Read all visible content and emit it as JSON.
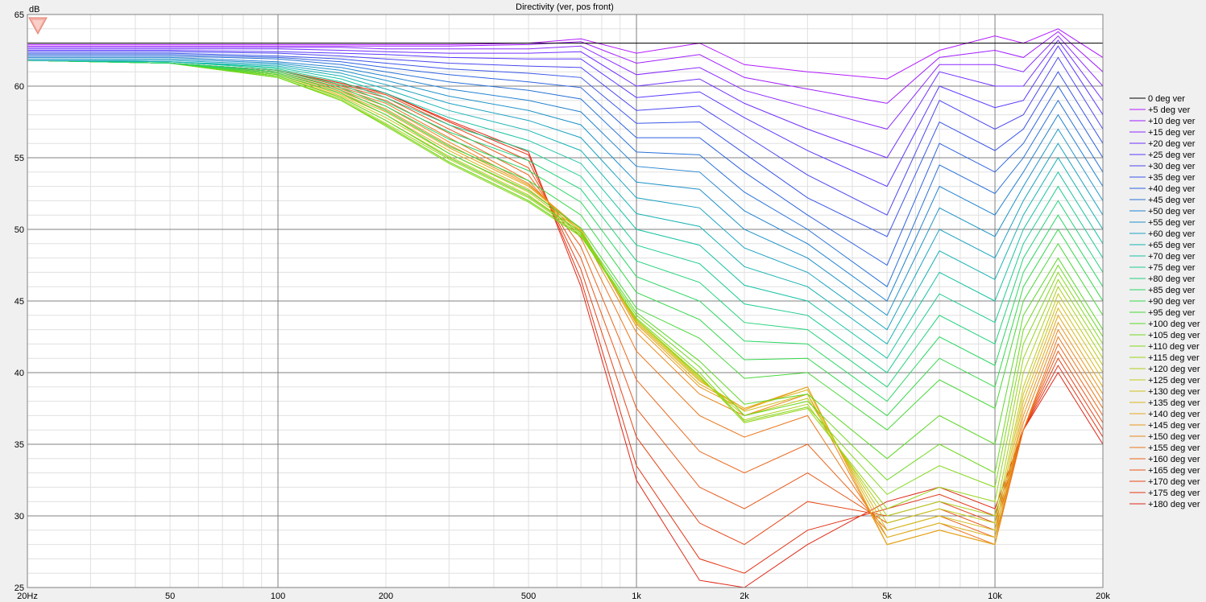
{
  "chart_data": {
    "type": "line",
    "title": "Directivity (ver, pos front)",
    "ylabel": "dB",
    "xscale": "log",
    "xlim": [
      20,
      20000
    ],
    "ylim": [
      25,
      65
    ],
    "x_ticks": [
      {
        "value": 20,
        "label": "20Hz"
      },
      {
        "value": 50,
        "label": "50"
      },
      {
        "value": 100,
        "label": "100"
      },
      {
        "value": 200,
        "label": "200"
      },
      {
        "value": 500,
        "label": "500"
      },
      {
        "value": 1000,
        "label": "1k"
      },
      {
        "value": 2000,
        "label": "2k"
      },
      {
        "value": 5000,
        "label": "5k"
      },
      {
        "value": 10000,
        "label": "10k"
      },
      {
        "value": 20000,
        "label": "20k"
      }
    ],
    "y_ticks": [
      {
        "value": 25,
        "label": "25"
      },
      {
        "value": 30,
        "label": "30"
      },
      {
        "value": 35,
        "label": "35"
      },
      {
        "value": 40,
        "label": "40"
      },
      {
        "value": 45,
        "label": "45"
      },
      {
        "value": 50,
        "label": "50"
      },
      {
        "value": 55,
        "label": "55"
      },
      {
        "value": 60,
        "label": "60"
      },
      {
        "value": 65,
        "label": "65"
      }
    ],
    "grid": true,
    "legend_position": "right",
    "reference_line": {
      "series": "0 deg ver",
      "value": 63.0,
      "color": "#000000"
    },
    "x": [
      20,
      50,
      100,
      150,
      200,
      300,
      500,
      700,
      1000,
      1500,
      2000,
      3000,
      5000,
      7000,
      10000,
      12000,
      15000,
      20000
    ],
    "series": [
      {
        "name": "0 deg ver",
        "color": "#000000",
        "values": [
          63.0,
          63.0,
          63.0,
          63.0,
          63.0,
          63.0,
          63.0,
          63.0,
          63.0,
          63.0,
          63.0,
          63.0,
          63.0,
          63.0,
          63.0,
          63.0,
          63.0,
          63.0
        ]
      },
      {
        "name": "+5 deg ver",
        "color": "#b31aff",
        "values": [
          62.9,
          62.9,
          62.9,
          62.9,
          62.9,
          62.9,
          63.0,
          63.3,
          62.3,
          63.0,
          61.5,
          61.0,
          60.5,
          62.5,
          63.5,
          63.0,
          64.0,
          62.0
        ]
      },
      {
        "name": "+10 deg ver",
        "color": "#a01eff",
        "values": [
          62.8,
          62.8,
          62.8,
          62.8,
          62.8,
          62.8,
          62.9,
          63.1,
          61.6,
          62.2,
          60.6,
          59.8,
          58.8,
          62.0,
          62.5,
          62.0,
          63.8,
          61.0
        ]
      },
      {
        "name": "+15 deg ver",
        "color": "#8a2aff",
        "values": [
          62.7,
          62.7,
          62.7,
          62.7,
          62.6,
          62.6,
          62.6,
          62.8,
          60.8,
          61.3,
          59.7,
          58.5,
          57.0,
          61.5,
          61.5,
          61.0,
          63.5,
          60.0
        ]
      },
      {
        "name": "+20 deg ver",
        "color": "#7030ff",
        "values": [
          62.6,
          62.6,
          62.6,
          62.5,
          62.4,
          62.3,
          62.3,
          62.4,
          60.0,
          60.5,
          58.8,
          57.0,
          55.0,
          61.0,
          60.0,
          60.0,
          63.2,
          59.0
        ]
      },
      {
        "name": "+25 deg ver",
        "color": "#5a38ff",
        "values": [
          62.5,
          62.5,
          62.4,
          62.3,
          62.2,
          62.0,
          61.9,
          61.9,
          59.2,
          59.6,
          57.8,
          55.5,
          53.0,
          60.0,
          58.5,
          59.0,
          62.8,
          58.0
        ]
      },
      {
        "name": "+30 deg ver",
        "color": "#4a46f0",
        "values": [
          62.4,
          62.4,
          62.3,
          62.1,
          61.9,
          61.6,
          61.4,
          61.3,
          58.3,
          58.6,
          56.6,
          53.8,
          51.0,
          59.0,
          57.0,
          58.0,
          62.0,
          57.0
        ]
      },
      {
        "name": "+35 deg ver",
        "color": "#3a55e8",
        "values": [
          62.3,
          62.3,
          62.1,
          61.9,
          61.6,
          61.2,
          60.9,
          60.6,
          57.4,
          57.5,
          55.3,
          52.2,
          49.5,
          57.5,
          55.5,
          57.0,
          61.0,
          56.0
        ]
      },
      {
        "name": "+40 deg ver",
        "color": "#2e62e0",
        "values": [
          62.2,
          62.2,
          62.0,
          61.7,
          61.3,
          60.8,
          60.3,
          59.9,
          56.4,
          56.4,
          54.0,
          51.0,
          47.5,
          56.0,
          54.0,
          56.0,
          60.0,
          55.0
        ]
      },
      {
        "name": "+45 deg ver",
        "color": "#2872d8",
        "values": [
          62.1,
          62.1,
          61.9,
          61.5,
          61.0,
          60.3,
          59.7,
          59.1,
          55.4,
          55.2,
          52.6,
          50.0,
          46.0,
          54.5,
          52.5,
          55.0,
          59.0,
          54.0
        ]
      },
      {
        "name": "+50 deg ver",
        "color": "#2282d0",
        "values": [
          62.0,
          62.0,
          61.7,
          61.3,
          60.7,
          59.8,
          59.0,
          58.2,
          54.4,
          54.0,
          51.3,
          49.0,
          45.0,
          53.0,
          51.0,
          54.0,
          58.0,
          53.0
        ]
      },
      {
        "name": "+55 deg ver",
        "color": "#1e92c8",
        "values": [
          61.9,
          61.9,
          61.6,
          61.1,
          60.4,
          59.3,
          58.3,
          57.3,
          53.3,
          52.8,
          50.0,
          48.0,
          44.0,
          51.5,
          49.5,
          53.0,
          57.0,
          52.0
        ]
      },
      {
        "name": "+60 deg ver",
        "color": "#1aa2c0",
        "values": [
          61.8,
          61.8,
          61.5,
          60.9,
          60.1,
          58.8,
          57.6,
          56.4,
          52.2,
          51.5,
          48.7,
          47.0,
          43.0,
          50.0,
          48.0,
          52.0,
          56.0,
          51.0
        ]
      },
      {
        "name": "+65 deg ver",
        "color": "#18b2b4",
        "values": [
          61.8,
          61.7,
          61.4,
          60.7,
          59.8,
          58.3,
          56.9,
          55.5,
          51.1,
          50.2,
          47.4,
          46.0,
          42.0,
          48.5,
          46.5,
          51.0,
          55.0,
          50.0
        ]
      },
      {
        "name": "+70 deg ver",
        "color": "#18c2a4",
        "values": [
          61.8,
          61.7,
          61.3,
          60.5,
          59.5,
          57.8,
          56.2,
          54.6,
          50.0,
          48.9,
          46.1,
          45.0,
          41.0,
          47.0,
          45.0,
          50.0,
          54.0,
          49.0
        ]
      },
      {
        "name": "+75 deg ver",
        "color": "#1ccc90",
        "values": [
          61.8,
          61.7,
          61.2,
          60.3,
          59.2,
          57.3,
          55.5,
          53.7,
          48.9,
          47.6,
          44.8,
          44.0,
          40.0,
          45.5,
          43.5,
          49.0,
          53.0,
          48.0
        ]
      },
      {
        "name": "+80 deg ver",
        "color": "#22d27a",
        "values": [
          61.8,
          61.6,
          61.1,
          60.1,
          58.9,
          56.8,
          54.8,
          52.8,
          47.8,
          46.3,
          43.5,
          43.0,
          39.0,
          44.0,
          42.0,
          48.0,
          52.0,
          47.0
        ]
      },
      {
        "name": "+85 deg ver",
        "color": "#2ad662",
        "values": [
          61.8,
          61.6,
          61.0,
          59.9,
          58.6,
          56.3,
          54.1,
          51.9,
          46.7,
          45.0,
          42.2,
          42.0,
          38.0,
          42.5,
          40.5,
          47.0,
          51.0,
          46.0
        ]
      },
      {
        "name": "+90 deg ver",
        "color": "#36d84c",
        "values": [
          61.8,
          61.6,
          60.9,
          59.7,
          58.3,
          55.8,
          53.4,
          51.0,
          45.6,
          43.7,
          40.9,
          41.0,
          37.0,
          41.0,
          39.0,
          46.0,
          50.0,
          45.0
        ]
      },
      {
        "name": "+95 deg ver",
        "color": "#48d838",
        "values": [
          61.8,
          61.6,
          60.8,
          59.5,
          58.0,
          55.3,
          52.7,
          50.1,
          44.5,
          42.4,
          39.6,
          40.0,
          36.0,
          39.5,
          37.5,
          45.0,
          49.0,
          44.0
        ]
      },
      {
        "name": "+100 deg ver",
        "color": "#5cd828",
        "values": [
          61.8,
          61.6,
          60.7,
          59.2,
          57.6,
          55.0,
          52.3,
          49.8,
          44.2,
          40.8,
          37.8,
          38.5,
          34.0,
          37.0,
          35.0,
          44.0,
          48.0,
          43.0
        ]
      },
      {
        "name": "+105 deg ver",
        "color": "#70d820",
        "values": [
          61.8,
          61.6,
          60.6,
          59.0,
          57.3,
          54.7,
          52.0,
          49.6,
          44.0,
          40.4,
          37.0,
          38.0,
          32.5,
          35.0,
          33.0,
          43.0,
          47.5,
          42.5
        ]
      },
      {
        "name": "+110 deg ver",
        "color": "#84d81c",
        "values": [
          61.8,
          61.6,
          60.6,
          59.0,
          57.2,
          54.6,
          51.9,
          49.5,
          43.8,
          40.0,
          36.6,
          37.6,
          31.5,
          33.5,
          32.0,
          42.0,
          47.0,
          42.0
        ]
      },
      {
        "name": "+115 deg ver",
        "color": "#98d41a",
        "values": [
          61.8,
          61.6,
          60.6,
          59.0,
          57.3,
          54.7,
          52.0,
          49.6,
          43.7,
          39.8,
          36.5,
          37.5,
          30.5,
          32.0,
          31.0,
          41.0,
          46.5,
          41.5
        ]
      },
      {
        "name": "+120 deg ver",
        "color": "#acd01a",
        "values": [
          61.8,
          61.6,
          60.6,
          59.1,
          57.4,
          54.9,
          52.2,
          49.7,
          43.7,
          39.7,
          36.7,
          37.8,
          30.0,
          31.0,
          30.0,
          40.0,
          46.0,
          41.0
        ]
      },
      {
        "name": "+125 deg ver",
        "color": "#c0ca1a",
        "values": [
          61.8,
          61.6,
          60.7,
          59.2,
          57.6,
          55.1,
          52.4,
          49.8,
          43.7,
          39.6,
          37.0,
          38.2,
          29.5,
          30.5,
          29.5,
          39.0,
          45.5,
          40.5
        ]
      },
      {
        "name": "+130 deg ver",
        "color": "#d0c01a",
        "values": [
          61.8,
          61.6,
          60.7,
          59.3,
          57.8,
          55.3,
          52.6,
          49.9,
          43.6,
          39.5,
          37.3,
          38.5,
          29.0,
          30.0,
          29.0,
          38.5,
          45.0,
          40.0
        ]
      },
      {
        "name": "+135 deg ver",
        "color": "#dcb41a",
        "values": [
          61.8,
          61.6,
          60.8,
          59.4,
          58.0,
          55.5,
          52.8,
          50.0,
          43.5,
          39.4,
          37.5,
          38.8,
          28.5,
          29.5,
          28.5,
          38.0,
          44.5,
          39.5
        ]
      },
      {
        "name": "+140 deg ver",
        "color": "#e4a61a",
        "values": [
          61.8,
          61.6,
          60.8,
          59.5,
          58.2,
          55.7,
          53.0,
          50.0,
          43.4,
          39.2,
          37.5,
          39.0,
          28.0,
          29.0,
          28.0,
          37.5,
          44.0,
          39.0
        ]
      },
      {
        "name": "+145 deg ver",
        "color": "#e8961a",
        "values": [
          61.8,
          61.6,
          60.9,
          59.6,
          58.4,
          55.9,
          53.1,
          50.0,
          43.2,
          39.0,
          37.4,
          39.0,
          28.0,
          29.0,
          28.0,
          37.0,
          43.5,
          38.5
        ]
      },
      {
        "name": "+150 deg ver",
        "color": "#ea861a",
        "values": [
          61.8,
          61.6,
          60.9,
          59.7,
          58.6,
          56.1,
          53.2,
          49.8,
          42.8,
          38.5,
          37.0,
          38.5,
          28.0,
          29.0,
          28.0,
          36.5,
          43.0,
          38.0
        ]
      },
      {
        "name": "+155 deg ver",
        "color": "#ea761a",
        "values": [
          61.8,
          61.6,
          61.0,
          59.8,
          58.8,
          56.4,
          53.4,
          49.4,
          41.5,
          37.0,
          35.5,
          37.0,
          28.5,
          29.5,
          28.0,
          36.0,
          42.5,
          37.5
        ]
      },
      {
        "name": "+160 deg ver",
        "color": "#ea661a",
        "values": [
          61.8,
          61.6,
          61.0,
          59.9,
          59.0,
          56.7,
          53.8,
          48.8,
          39.5,
          34.5,
          33.0,
          35.0,
          29.0,
          30.0,
          28.5,
          36.0,
          42.0,
          37.0
        ]
      },
      {
        "name": "+165 deg ver",
        "color": "#e85618",
        "values": [
          61.8,
          61.6,
          61.1,
          60.0,
          59.2,
          57.0,
          54.3,
          48.0,
          37.5,
          32.0,
          30.5,
          33.0,
          29.5,
          30.5,
          29.0,
          36.0,
          41.5,
          36.5
        ]
      },
      {
        "name": "+170 deg ver",
        "color": "#e64618",
        "values": [
          61.8,
          61.6,
          61.1,
          60.1,
          59.4,
          57.3,
          54.8,
          47.2,
          35.5,
          29.5,
          28.0,
          31.0,
          30.0,
          31.0,
          29.5,
          36.0,
          41.0,
          36.0
        ]
      },
      {
        "name": "+175 deg ver",
        "color": "#e43618",
        "values": [
          61.8,
          61.6,
          61.1,
          60.2,
          59.5,
          57.5,
          55.2,
          46.5,
          33.5,
          27.0,
          26.0,
          29.0,
          30.5,
          31.5,
          30.0,
          36.0,
          40.5,
          35.5
        ]
      },
      {
        "name": "+180 deg ver",
        "color": "#e02818",
        "values": [
          61.8,
          61.6,
          61.1,
          60.2,
          59.5,
          57.6,
          55.4,
          46.0,
          32.5,
          25.5,
          25.0,
          28.0,
          31.0,
          32.0,
          30.5,
          36.0,
          40.0,
          35.0
        ]
      }
    ]
  }
}
